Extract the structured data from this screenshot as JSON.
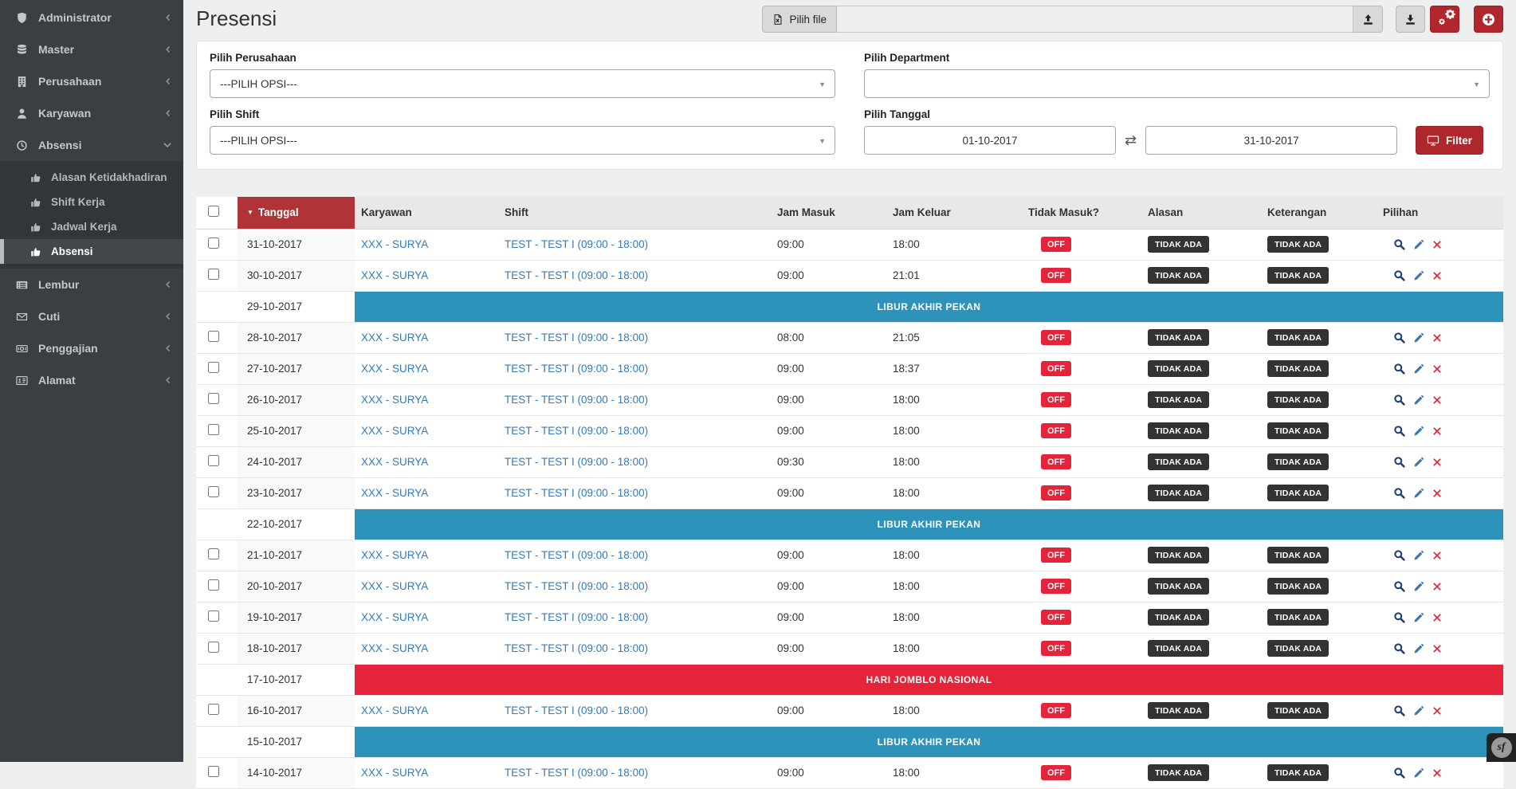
{
  "app": {
    "title": "Presensi"
  },
  "colors": {
    "sidebar_bg": "#3a3f44",
    "sidebar_submenu_bg": "#31363b",
    "accent_red_button": "#b0262d",
    "sorted_header_red": "#b03338",
    "crimson_badge": "#e3243a",
    "banner_blue": "#2d93bb",
    "badge_dark": "#333333",
    "link_blue": "#337ab7"
  },
  "sidebar": {
    "items": [
      {
        "label": "Administrator",
        "icon": "shield-icon",
        "chevron": "left"
      },
      {
        "label": "Master",
        "icon": "database-icon",
        "chevron": "left"
      },
      {
        "label": "Perusahaan",
        "icon": "building-icon",
        "chevron": "left"
      },
      {
        "label": "Karyawan",
        "icon": "user-icon",
        "chevron": "left"
      },
      {
        "label": "Absensi",
        "icon": "clock-icon",
        "chevron": "down",
        "expanded": true,
        "children": [
          {
            "label": "Alasan Ketidakhadiran",
            "icon": "thumbs-up-icon",
            "active": false
          },
          {
            "label": "Shift Kerja",
            "icon": "thumbs-up-icon",
            "active": false
          },
          {
            "label": "Jadwal Kerja",
            "icon": "thumbs-up-icon",
            "active": false
          },
          {
            "label": "Absensi",
            "icon": "thumbs-up-icon",
            "active": true
          }
        ]
      },
      {
        "label": "Lembur",
        "icon": "list-icon",
        "chevron": "left"
      },
      {
        "label": "Cuti",
        "icon": "envelope-icon",
        "chevron": "left"
      },
      {
        "label": "Penggajian",
        "icon": "money-icon",
        "chevron": "left"
      },
      {
        "label": "Alamat",
        "icon": "id-card-icon",
        "chevron": "left"
      }
    ]
  },
  "toolbar": {
    "pilih_file_label": "Pilih file",
    "pilih_file_icon": "file-excel-icon",
    "file_input_value": "",
    "upload_icon": "upload-icon",
    "download_icon": "download-icon",
    "settings_icon": "cogs-icon",
    "add_icon": "plus-circle-icon"
  },
  "filters": {
    "perusahaan": {
      "label": "Pilih Perusahaan",
      "value": "---PILIH OPSI---"
    },
    "department": {
      "label": "Pilih Department",
      "value": ""
    },
    "shift": {
      "label": "Pilih Shift",
      "value": "---PILIH OPSI---"
    },
    "tanggal": {
      "label": "Pilih Tanggal",
      "from": "01-10-2017",
      "to": "31-10-2017"
    },
    "filter_button_label": "Filter"
  },
  "table": {
    "columns": [
      {
        "key": "tanggal",
        "label": "Tanggal",
        "sorted": "desc"
      },
      {
        "key": "karyawan",
        "label": "Karyawan"
      },
      {
        "key": "shift",
        "label": "Shift"
      },
      {
        "key": "jam_masuk",
        "label": "Jam Masuk"
      },
      {
        "key": "jam_keluar",
        "label": "Jam Keluar"
      },
      {
        "key": "tidak_masuk",
        "label": "Tidak Masuk?"
      },
      {
        "key": "alasan",
        "label": "Alasan"
      },
      {
        "key": "keterangan",
        "label": "Keterangan"
      },
      {
        "key": "pilihan",
        "label": "Pilihan"
      }
    ],
    "rows": [
      {
        "type": "data",
        "tanggal": "31-10-2017",
        "karyawan": "XXX - SURYA",
        "shift": "TEST - TEST I (09:00 - 18:00)",
        "jam_masuk": "09:00",
        "jam_keluar": "18:00",
        "tidak_masuk": "OFF",
        "alasan": "TIDAK ADA",
        "keterangan": "TIDAK ADA"
      },
      {
        "type": "data",
        "tanggal": "30-10-2017",
        "karyawan": "XXX - SURYA",
        "shift": "TEST - TEST I (09:00 - 18:00)",
        "jam_masuk": "09:00",
        "jam_keluar": "21:01",
        "tidak_masuk": "OFF",
        "alasan": "TIDAK ADA",
        "keterangan": "TIDAK ADA"
      },
      {
        "type": "banner",
        "tanggal": "29-10-2017",
        "text": "LIBUR AKHIR PEKAN",
        "variant": "info"
      },
      {
        "type": "data",
        "tanggal": "28-10-2017",
        "karyawan": "XXX - SURYA",
        "shift": "TEST - TEST I (09:00 - 18:00)",
        "jam_masuk": "08:00",
        "jam_keluar": "21:05",
        "tidak_masuk": "OFF",
        "alasan": "TIDAK ADA",
        "keterangan": "TIDAK ADA"
      },
      {
        "type": "data",
        "tanggal": "27-10-2017",
        "karyawan": "XXX - SURYA",
        "shift": "TEST - TEST I (09:00 - 18:00)",
        "jam_masuk": "09:00",
        "jam_keluar": "18:37",
        "tidak_masuk": "OFF",
        "alasan": "TIDAK ADA",
        "keterangan": "TIDAK ADA"
      },
      {
        "type": "data",
        "tanggal": "26-10-2017",
        "karyawan": "XXX - SURYA",
        "shift": "TEST - TEST I (09:00 - 18:00)",
        "jam_masuk": "09:00",
        "jam_keluar": "18:00",
        "tidak_masuk": "OFF",
        "alasan": "TIDAK ADA",
        "keterangan": "TIDAK ADA"
      },
      {
        "type": "data",
        "tanggal": "25-10-2017",
        "karyawan": "XXX - SURYA",
        "shift": "TEST - TEST I (09:00 - 18:00)",
        "jam_masuk": "09:00",
        "jam_keluar": "18:00",
        "tidak_masuk": "OFF",
        "alasan": "TIDAK ADA",
        "keterangan": "TIDAK ADA"
      },
      {
        "type": "data",
        "tanggal": "24-10-2017",
        "karyawan": "XXX - SURYA",
        "shift": "TEST - TEST I (09:00 - 18:00)",
        "jam_masuk": "09:30",
        "jam_keluar": "18:00",
        "tidak_masuk": "OFF",
        "alasan": "TIDAK ADA",
        "keterangan": "TIDAK ADA"
      },
      {
        "type": "data",
        "tanggal": "23-10-2017",
        "karyawan": "XXX - SURYA",
        "shift": "TEST - TEST I (09:00 - 18:00)",
        "jam_masuk": "09:00",
        "jam_keluar": "18:00",
        "tidak_masuk": "OFF",
        "alasan": "TIDAK ADA",
        "keterangan": "TIDAK ADA"
      },
      {
        "type": "banner",
        "tanggal": "22-10-2017",
        "text": "LIBUR AKHIR PEKAN",
        "variant": "info"
      },
      {
        "type": "data",
        "tanggal": "21-10-2017",
        "karyawan": "XXX - SURYA",
        "shift": "TEST - TEST I (09:00 - 18:00)",
        "jam_masuk": "09:00",
        "jam_keluar": "18:00",
        "tidak_masuk": "OFF",
        "alasan": "TIDAK ADA",
        "keterangan": "TIDAK ADA"
      },
      {
        "type": "data",
        "tanggal": "20-10-2017",
        "karyawan": "XXX - SURYA",
        "shift": "TEST - TEST I (09:00 - 18:00)",
        "jam_masuk": "09:00",
        "jam_keluar": "18:00",
        "tidak_masuk": "OFF",
        "alasan": "TIDAK ADA",
        "keterangan": "TIDAK ADA"
      },
      {
        "type": "data",
        "tanggal": "19-10-2017",
        "karyawan": "XXX - SURYA",
        "shift": "TEST - TEST I (09:00 - 18:00)",
        "jam_masuk": "09:00",
        "jam_keluar": "18:00",
        "tidak_masuk": "OFF",
        "alasan": "TIDAK ADA",
        "keterangan": "TIDAK ADA"
      },
      {
        "type": "data",
        "tanggal": "18-10-2017",
        "karyawan": "XXX - SURYA",
        "shift": "TEST - TEST I (09:00 - 18:00)",
        "jam_masuk": "09:00",
        "jam_keluar": "18:00",
        "tidak_masuk": "OFF",
        "alasan": "TIDAK ADA",
        "keterangan": "TIDAK ADA"
      },
      {
        "type": "banner",
        "tanggal": "17-10-2017",
        "text": "HARI JOMBLO NASIONAL",
        "variant": "danger"
      },
      {
        "type": "data",
        "tanggal": "16-10-2017",
        "karyawan": "XXX - SURYA",
        "shift": "TEST - TEST I (09:00 - 18:00)",
        "jam_masuk": "09:00",
        "jam_keluar": "18:00",
        "tidak_masuk": "OFF",
        "alasan": "TIDAK ADA",
        "keterangan": "TIDAK ADA"
      },
      {
        "type": "banner",
        "tanggal": "15-10-2017",
        "text": "LIBUR AKHIR PEKAN",
        "variant": "info"
      },
      {
        "type": "data",
        "tanggal": "14-10-2017",
        "karyawan": "XXX - SURYA",
        "shift": "TEST - TEST I (09:00 - 18:00)",
        "jam_masuk": "09:00",
        "jam_keluar": "18:00",
        "tidak_masuk": "OFF",
        "alasan": "TIDAK ADA",
        "keterangan": "TIDAK ADA"
      }
    ],
    "action_icons": [
      "search-icon",
      "pencil-icon",
      "delete-x-icon"
    ]
  },
  "footer_widget": {
    "label": "sf",
    "name": "symfony-profiler-badge"
  }
}
